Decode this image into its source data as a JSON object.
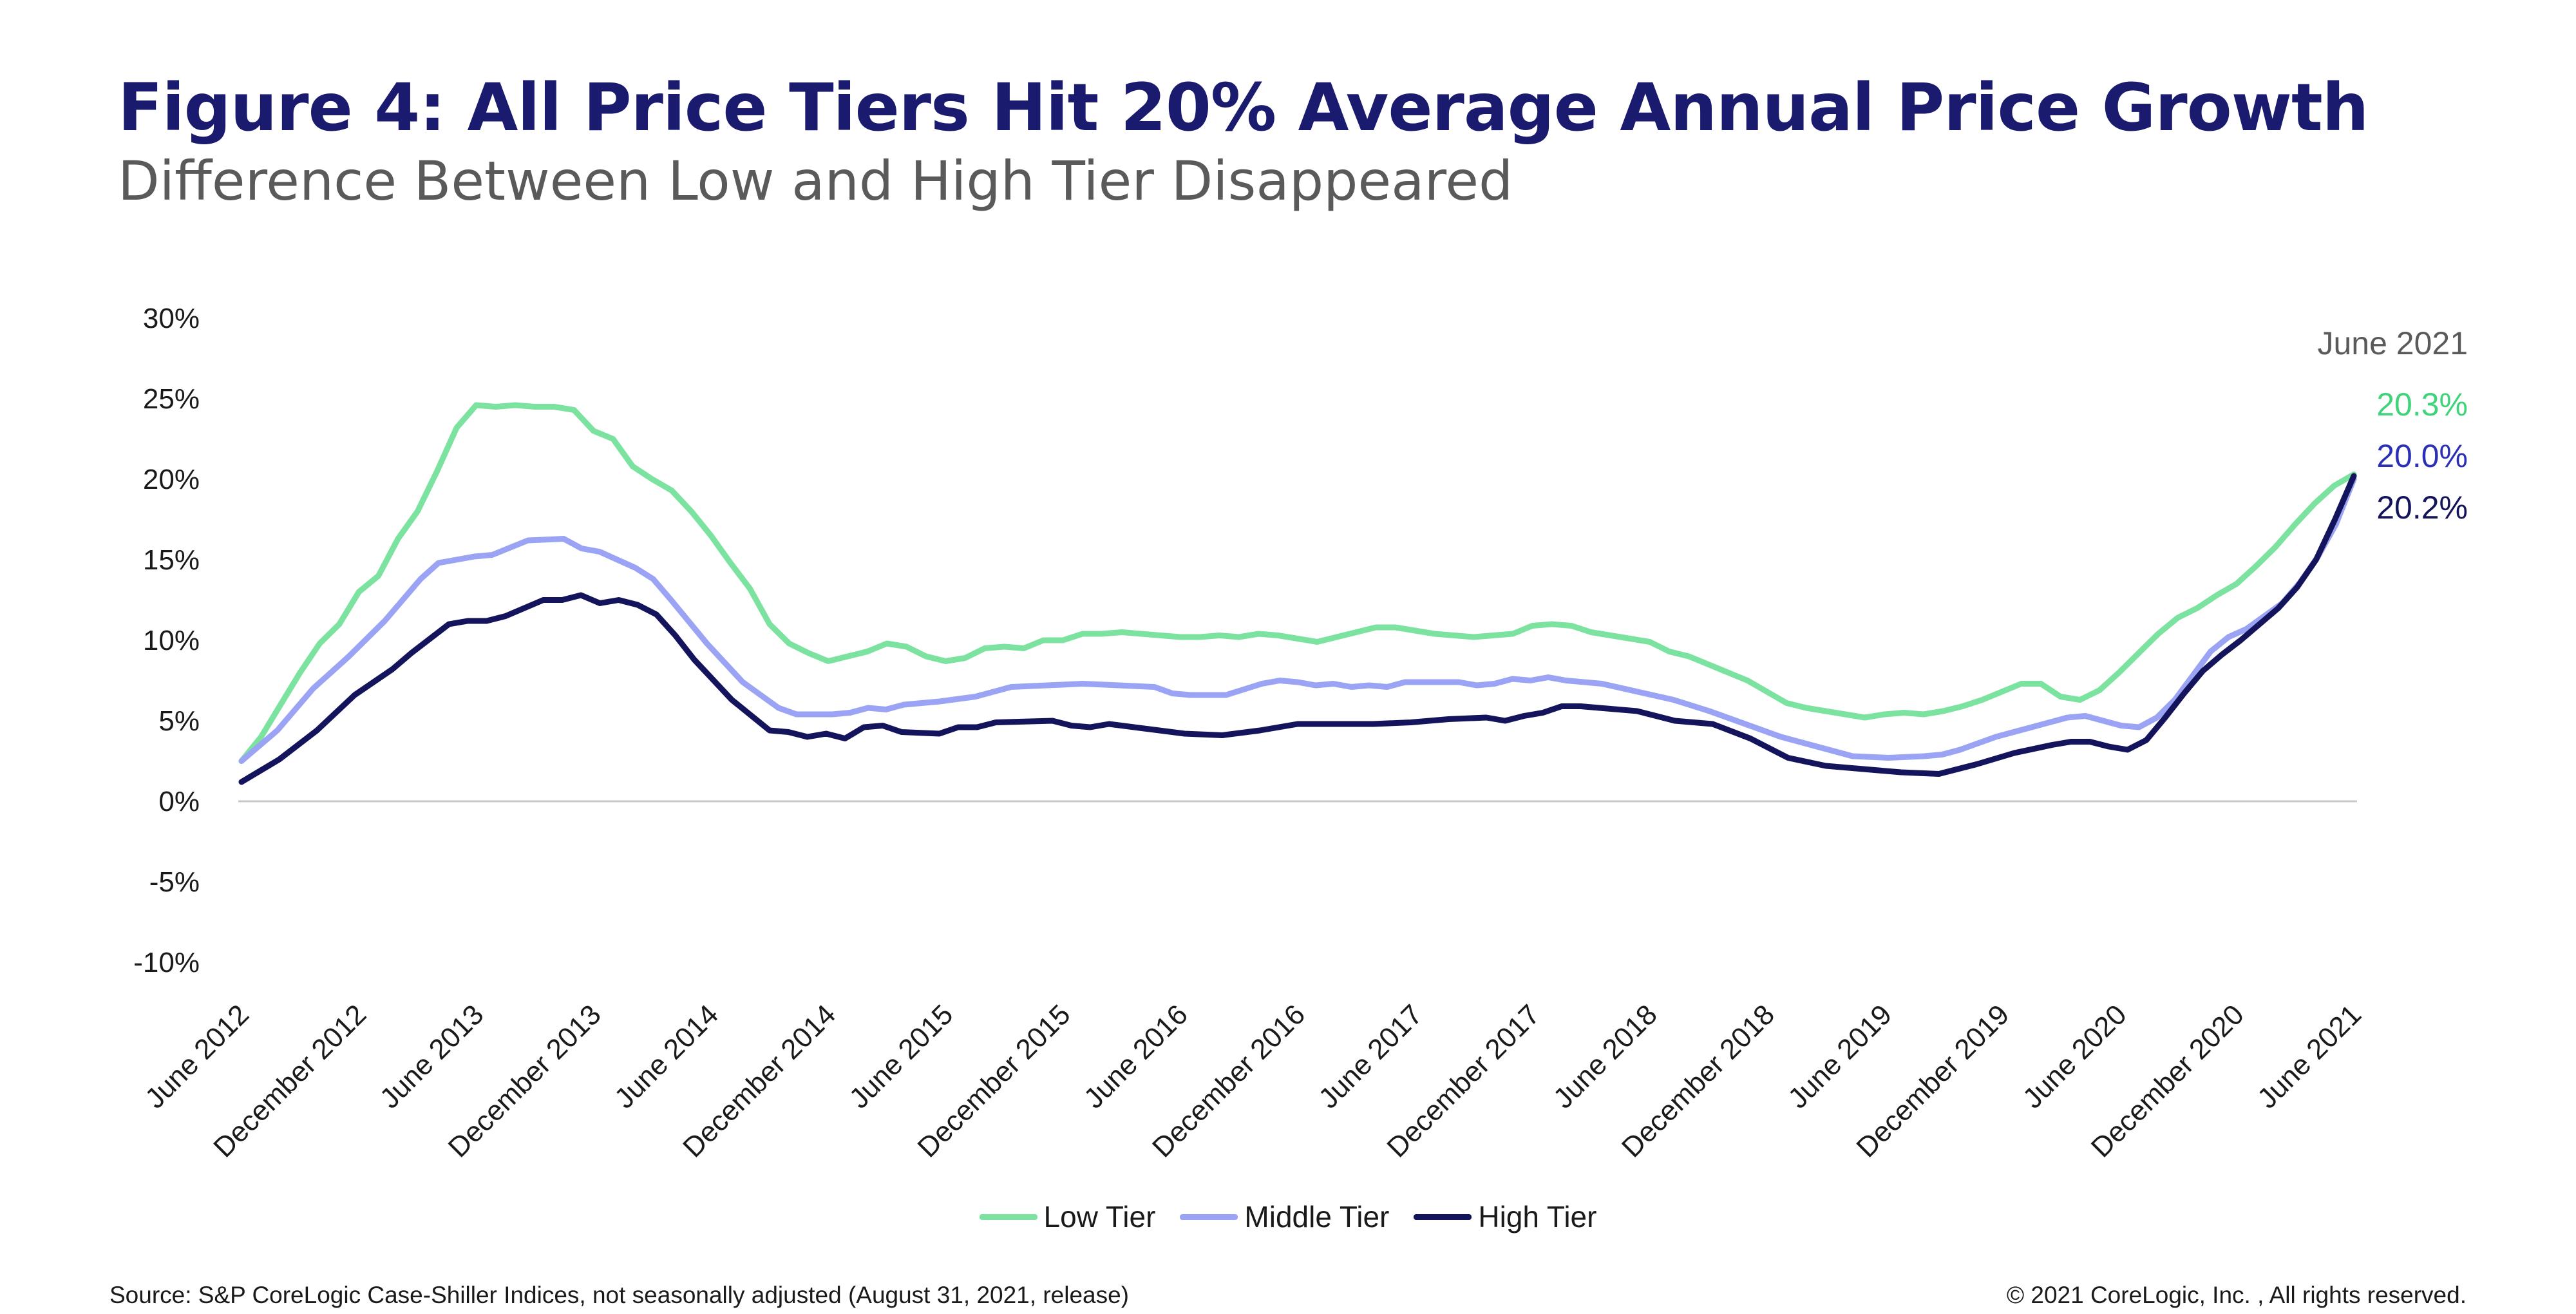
{
  "chart_data": {
    "type": "line",
    "title": "Figure 4: All Price Tiers Hit 20% Average Annual Price Growth",
    "subtitle": "Difference Between Low and High Tier Disappeared",
    "xlabel": "",
    "ylabel": "",
    "ylim": [
      -10,
      30
    ],
    "yticks": [
      30,
      25,
      20,
      15,
      10,
      5,
      0,
      -5,
      -10
    ],
    "ytick_labels": [
      "30%",
      "25%",
      "20%",
      "15%",
      "10%",
      "5%",
      "0%",
      "-5%",
      "-10%"
    ],
    "x_tick_labels": [
      "June 2012",
      "December 2012",
      "June 2013",
      "December 2013",
      "June 2014",
      "December 2014",
      "June 2015",
      "December 2015",
      "June 2016",
      "December 2016",
      "June 2017",
      "December 2017",
      "June 2018",
      "December 2018",
      "June 2019",
      "December 2019",
      "June 2020",
      "December 2020",
      "June 2021"
    ],
    "x_start": "June 2012",
    "x_end": "June 2021",
    "months": 109,
    "series": [
      {
        "name": "Low Tier",
        "color": "#7be39f",
        "anchors": [
          [
            0,
            2.5
          ],
          [
            1,
            4
          ],
          [
            2,
            6
          ],
          [
            3,
            8
          ],
          [
            4,
            9.8
          ],
          [
            5,
            11
          ],
          [
            6,
            13
          ],
          [
            7,
            14
          ],
          [
            8,
            16.3
          ],
          [
            9,
            18
          ],
          [
            10,
            20.5
          ],
          [
            11,
            23.2
          ],
          [
            12,
            24.6
          ],
          [
            13,
            24.5
          ],
          [
            14,
            24.6
          ],
          [
            15,
            24.5
          ],
          [
            16,
            24.5
          ],
          [
            17,
            24.3
          ],
          [
            18,
            23
          ],
          [
            19,
            22.5
          ],
          [
            20,
            20.8
          ],
          [
            21,
            20
          ],
          [
            22,
            19.3
          ],
          [
            23,
            18
          ],
          [
            24,
            16.5
          ],
          [
            25,
            14.8
          ],
          [
            26,
            13.2
          ],
          [
            27,
            11
          ],
          [
            28,
            9.8
          ],
          [
            29,
            9.2
          ],
          [
            30,
            8.7
          ],
          [
            31,
            9
          ],
          [
            32,
            9.3
          ],
          [
            33,
            9.8
          ],
          [
            34,
            9.6
          ],
          [
            35,
            9
          ],
          [
            36,
            8.7
          ],
          [
            37,
            8.9
          ],
          [
            38,
            9.5
          ],
          [
            39,
            9.6
          ],
          [
            40,
            9.5
          ],
          [
            41,
            10
          ],
          [
            42,
            10
          ],
          [
            43,
            10.4
          ],
          [
            44,
            10.4
          ],
          [
            45,
            10.5
          ],
          [
            46,
            10.4
          ],
          [
            47,
            10.3
          ],
          [
            48,
            10.2
          ],
          [
            49,
            10.2
          ],
          [
            50,
            10.3
          ],
          [
            51,
            10.2
          ],
          [
            52,
            10.4
          ],
          [
            53,
            10.3
          ],
          [
            54,
            10.1
          ],
          [
            55,
            9.9
          ],
          [
            56,
            10.2
          ],
          [
            57,
            10.5
          ],
          [
            58,
            10.8
          ],
          [
            59,
            10.8
          ],
          [
            60,
            10.6
          ],
          [
            61,
            10.4
          ],
          [
            62,
            10.3
          ],
          [
            63,
            10.2
          ],
          [
            64,
            10.3
          ],
          [
            65,
            10.4
          ],
          [
            66,
            10.9
          ],
          [
            67,
            11
          ],
          [
            68,
            10.9
          ],
          [
            69,
            10.5
          ],
          [
            70,
            10.3
          ],
          [
            71,
            10.1
          ],
          [
            72,
            9.9
          ],
          [
            73,
            9.3
          ],
          [
            74,
            9
          ],
          [
            75,
            8.5
          ],
          [
            76,
            8
          ],
          [
            77,
            7.5
          ],
          [
            78,
            6.8
          ],
          [
            79,
            6.1
          ],
          [
            80,
            5.8
          ],
          [
            81,
            5.6
          ],
          [
            82,
            5.4
          ],
          [
            83,
            5.2
          ],
          [
            84,
            5.4
          ],
          [
            85,
            5.5
          ],
          [
            86,
            5.4
          ],
          [
            87,
            5.6
          ],
          [
            88,
            5.9
          ],
          [
            89,
            6.3
          ],
          [
            90,
            6.8
          ],
          [
            91,
            7.3
          ],
          [
            92,
            7.3
          ],
          [
            93,
            6.5
          ],
          [
            94,
            6.3
          ],
          [
            95,
            6.9
          ],
          [
            96,
            8
          ],
          [
            97,
            9.2
          ],
          [
            98,
            10.4
          ],
          [
            99,
            11.4
          ],
          [
            100,
            12
          ],
          [
            101,
            12.8
          ],
          [
            102,
            13.5
          ],
          [
            103,
            14.6
          ],
          [
            104,
            15.8
          ],
          [
            105,
            17.2
          ],
          [
            106,
            18.5
          ],
          [
            107,
            19.6
          ],
          [
            108,
            20.3
          ]
        ]
      },
      {
        "name": "Middle Tier",
        "color": "#9aa3f4",
        "anchors": [
          [
            0,
            2.5
          ],
          [
            2,
            4.4
          ],
          [
            4,
            7
          ],
          [
            6,
            9
          ],
          [
            8,
            11.2
          ],
          [
            10,
            13.8
          ],
          [
            11,
            14.8
          ],
          [
            13,
            15.2
          ],
          [
            14,
            15.3
          ],
          [
            16,
            16.2
          ],
          [
            18,
            16.3
          ],
          [
            19,
            15.7
          ],
          [
            20,
            15.5
          ],
          [
            21,
            15
          ],
          [
            22,
            14.5
          ],
          [
            23,
            13.8
          ],
          [
            24,
            12.5
          ],
          [
            26,
            9.8
          ],
          [
            28,
            7.4
          ],
          [
            30,
            5.8
          ],
          [
            31,
            5.4
          ],
          [
            33,
            5.4
          ],
          [
            34,
            5.5
          ],
          [
            35,
            5.8
          ],
          [
            36,
            5.7
          ],
          [
            37,
            6
          ],
          [
            39,
            6.2
          ],
          [
            41,
            6.5
          ],
          [
            43,
            7.1
          ],
          [
            45,
            7.2
          ],
          [
            47,
            7.3
          ],
          [
            49,
            7.2
          ],
          [
            51,
            7.1
          ],
          [
            52,
            6.7
          ],
          [
            53,
            6.6
          ],
          [
            55,
            6.6
          ],
          [
            57,
            7.3
          ],
          [
            58,
            7.5
          ],
          [
            59,
            7.4
          ],
          [
            60,
            7.2
          ],
          [
            61,
            7.3
          ],
          [
            62,
            7.1
          ],
          [
            63,
            7.2
          ],
          [
            64,
            7.1
          ],
          [
            65,
            7.4
          ],
          [
            67,
            7.4
          ],
          [
            68,
            7.4
          ],
          [
            69,
            7.2
          ],
          [
            70,
            7.3
          ],
          [
            71,
            7.6
          ],
          [
            72,
            7.5
          ],
          [
            73,
            7.7
          ],
          [
            74,
            7.5
          ],
          [
            76,
            7.3
          ],
          [
            78,
            6.8
          ],
          [
            80,
            6.3
          ],
          [
            82,
            5.6
          ],
          [
            84,
            4.8
          ],
          [
            86,
            4
          ],
          [
            88,
            3.4
          ],
          [
            90,
            2.8
          ],
          [
            92,
            2.7
          ],
          [
            94,
            2.8
          ],
          [
            95,
            2.9
          ],
          [
            96,
            3.2
          ],
          [
            98,
            4
          ],
          [
            100,
            4.6
          ],
          [
            102,
            5.2
          ],
          [
            103,
            5.3
          ],
          [
            104,
            5
          ],
          [
            105,
            4.7
          ],
          [
            106,
            4.6
          ],
          [
            107,
            5.2
          ],
          [
            108,
            6.3
          ],
          [
            109,
            7.8
          ],
          [
            110,
            9.3
          ],
          [
            111,
            10.2
          ],
          [
            112,
            10.7
          ],
          [
            113,
            11.5
          ],
          [
            114,
            12.3
          ],
          [
            115,
            13.6
          ],
          [
            116,
            15.2
          ],
          [
            117,
            17.2
          ],
          [
            118,
            20
          ]
        ]
      },
      {
        "name": "High Tier",
        "color": "#14145c",
        "anchors": [
          [
            0,
            1.2
          ],
          [
            2,
            2.6
          ],
          [
            4,
            4.4
          ],
          [
            6,
            6.6
          ],
          [
            8,
            8.2
          ],
          [
            9,
            9.2
          ],
          [
            11,
            11
          ],
          [
            12,
            11.2
          ],
          [
            13,
            11.2
          ],
          [
            14,
            11.5
          ],
          [
            15,
            12
          ],
          [
            16,
            12.5
          ],
          [
            17,
            12.5
          ],
          [
            18,
            12.8
          ],
          [
            19,
            12.3
          ],
          [
            20,
            12.5
          ],
          [
            21,
            12.2
          ],
          [
            22,
            11.6
          ],
          [
            23,
            10.3
          ],
          [
            24,
            8.8
          ],
          [
            26,
            6.3
          ],
          [
            28,
            4.4
          ],
          [
            29,
            4.3
          ],
          [
            30,
            4
          ],
          [
            31,
            4.2
          ],
          [
            32,
            3.9
          ],
          [
            33,
            4.6
          ],
          [
            34,
            4.7
          ],
          [
            35,
            4.3
          ],
          [
            37,
            4.2
          ],
          [
            38,
            4.6
          ],
          [
            39,
            4.6
          ],
          [
            40,
            4.9
          ],
          [
            43,
            5
          ],
          [
            44,
            4.7
          ],
          [
            45,
            4.6
          ],
          [
            46,
            4.8
          ],
          [
            48,
            4.5
          ],
          [
            50,
            4.2
          ],
          [
            52,
            4.1
          ],
          [
            54,
            4.4
          ],
          [
            56,
            4.8
          ],
          [
            58,
            4.8
          ],
          [
            60,
            4.8
          ],
          [
            62,
            4.9
          ],
          [
            64,
            5.1
          ],
          [
            66,
            5.2
          ],
          [
            67,
            5
          ],
          [
            68,
            5.3
          ],
          [
            69,
            5.5
          ],
          [
            70,
            5.9
          ],
          [
            71,
            5.9
          ],
          [
            72,
            5.8
          ],
          [
            74,
            5.6
          ],
          [
            76,
            5
          ],
          [
            78,
            4.8
          ],
          [
            80,
            3.9
          ],
          [
            82,
            2.7
          ],
          [
            84,
            2.2
          ],
          [
            86,
            2
          ],
          [
            88,
            1.8
          ],
          [
            90,
            1.7
          ],
          [
            92,
            2.3
          ],
          [
            94,
            3
          ],
          [
            96,
            3.5
          ],
          [
            97,
            3.7
          ],
          [
            98,
            3.7
          ],
          [
            99,
            3.4
          ],
          [
            100,
            3.2
          ],
          [
            101,
            3.8
          ],
          [
            102,
            5.2
          ],
          [
            103,
            6.7
          ],
          [
            104,
            8.1
          ],
          [
            105,
            9.1
          ],
          [
            106,
            10
          ],
          [
            107,
            11
          ],
          [
            108,
            12
          ],
          [
            109,
            13.3
          ],
          [
            110,
            15
          ],
          [
            111,
            17.5
          ],
          [
            112,
            20.2
          ]
        ]
      }
    ],
    "end_annotation": {
      "label": "June 2021",
      "values": [
        {
          "text": "20.3%",
          "color": "#3fd37a"
        },
        {
          "text": "20.0%",
          "color": "#2a2fb5"
        },
        {
          "text": "20.2%",
          "color": "#14145c"
        }
      ]
    },
    "legend_position": "bottom-center",
    "grid": false
  },
  "header": {
    "title": "Figure 4: All Price Tiers Hit 20% Average Annual Price Growth",
    "subtitle": "Difference Between Low and High Tier Disappeared"
  },
  "legend": {
    "items": [
      {
        "label": "Low Tier",
        "color": "#7be39f"
      },
      {
        "label": "Middle Tier",
        "color": "#9aa3f4"
      },
      {
        "label": "High Tier",
        "color": "#14145c"
      }
    ]
  },
  "footer": {
    "source": "Source:  S&P CoreLogic Case-Shiller Indices, not seasonally adjusted (August 31, 2021, release)",
    "copyright": "© 2021 CoreLogic, Inc. , All rights reserved."
  }
}
